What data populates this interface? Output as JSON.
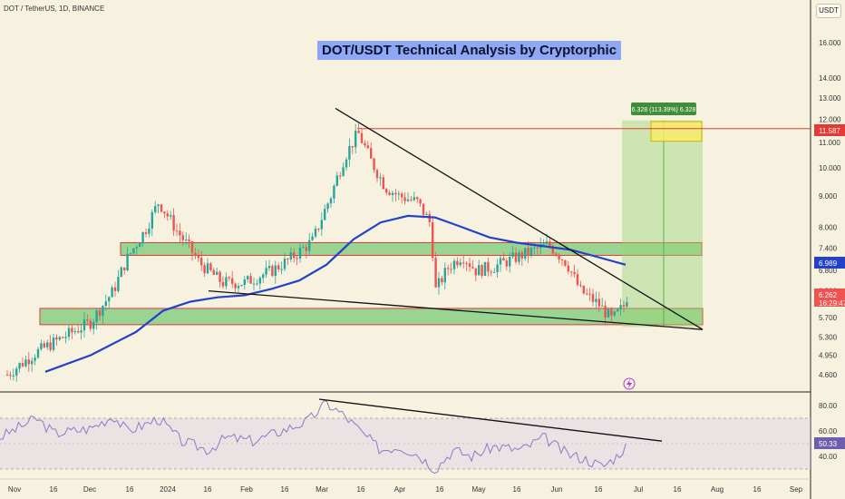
{
  "header": {
    "symbol": "DOT / TetherUS, 1D, BINANCE",
    "currency_button": "USDT"
  },
  "colors": {
    "background": "#f7f2e0",
    "candle_up": "#26a69a",
    "candle_down": "#ef5350",
    "ma_line": "#2342c8",
    "zone_fill": "#4cbb54",
    "zone_border": "#e53935",
    "target_fill": "#9ad57a",
    "target_box": "#f6ec6a",
    "rsi_line": "#8c7ac8",
    "title_bg": "#8fa8f5"
  },
  "chart_data": [
    {
      "type": "candlestick",
      "title": "DOT/USDT Technical Analysis by Cryptorphic",
      "y_scale": "log",
      "price_axis_ticks": [
        "16.000",
        "14.000",
        "13.000",
        "12.000",
        "11.000",
        "10.000",
        "9.000",
        "8.000",
        "7.400",
        "6.800",
        "6.300",
        "5.700",
        "5.300",
        "4.950",
        "4.600"
      ],
      "time_axis_ticks": [
        "Nov",
        "16",
        "Dec",
        "16",
        "2024",
        "16",
        "Feb",
        "16",
        "Mar",
        "16",
        "Apr",
        "16",
        "May",
        "16",
        "Jun",
        "16",
        "Jul",
        "16",
        "Aug",
        "16",
        "Sep"
      ],
      "price_labels": [
        {
          "value": "11.587",
          "color": "#e53935"
        },
        {
          "value": "6.989",
          "color": "#2342c8"
        },
        {
          "value": "6.262",
          "color": "#ef5350",
          "sub": "16:29:47"
        }
      ],
      "ma_series_name": "",
      "ma_points": [
        [
          50,
          4.65
        ],
        [
          100,
          4.95
        ],
        [
          150,
          5.4
        ],
        [
          180,
          5.85
        ],
        [
          210,
          6.05
        ],
        [
          240,
          6.15
        ],
        [
          270,
          6.2
        ],
        [
          300,
          6.35
        ],
        [
          330,
          6.55
        ],
        [
          360,
          6.95
        ],
        [
          390,
          7.65
        ],
        [
          420,
          8.15
        ],
        [
          450,
          8.35
        ],
        [
          480,
          8.3
        ],
        [
          510,
          8.0
        ],
        [
          540,
          7.7
        ],
        [
          570,
          7.55
        ],
        [
          600,
          7.45
        ],
        [
          630,
          7.35
        ],
        [
          660,
          7.15
        ],
        [
          690,
          6.95
        ]
      ],
      "support_zones": [
        {
          "top": 7.55,
          "bottom": 7.2
        },
        {
          "top": 5.9,
          "bottom": 5.55
        }
      ],
      "target_projection": {
        "label": "6.328 (113.39%) 6.328",
        "entry": 5.5,
        "target": 11.95,
        "target_zone_top": 11.9,
        "target_zone_bottom": 11.05,
        "resistance_level": 11.587
      },
      "trendlines": [
        {
          "name": "upper-falling-wedge",
          "points": [
            [
              370,
              12.5
            ],
            [
              775,
              5.45
            ]
          ]
        },
        {
          "name": "lower-falling-wedge",
          "points": [
            [
              230,
              6.3
            ],
            [
              775,
              5.45
            ]
          ]
        }
      ]
    },
    {
      "type": "line",
      "y_ticks": [
        "80.00",
        "60.00",
        "40.00"
      ],
      "current_value": "50.33",
      "upper_band": 70,
      "lower_band": 30,
      "trendline": {
        "points": [
          [
            352,
            85
          ],
          [
            730,
            52
          ]
        ]
      }
    }
  ]
}
